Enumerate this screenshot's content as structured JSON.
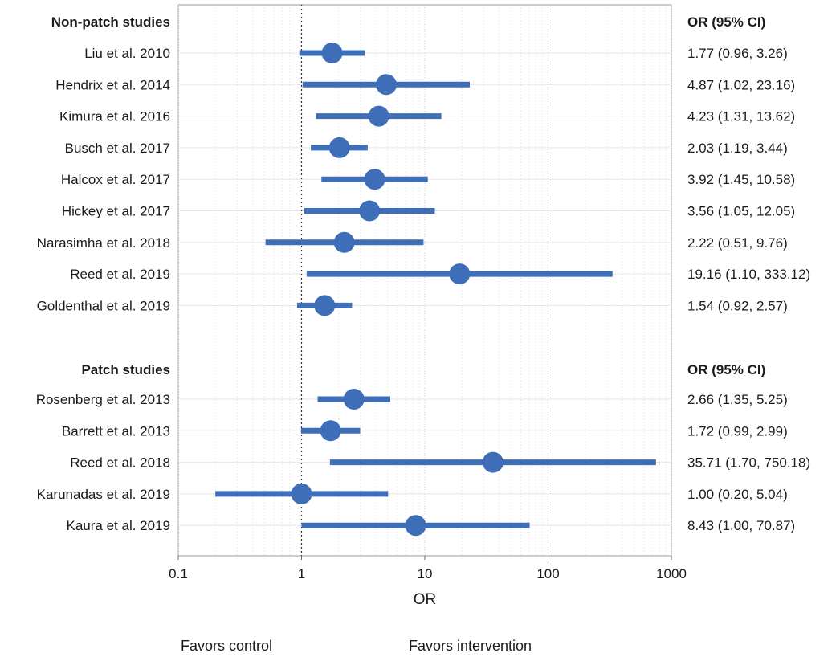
{
  "chart_data": {
    "type": "forest",
    "xlabel": "OR",
    "xscale": "log",
    "xlim": [
      0.1,
      1000
    ],
    "xticks": [
      0.1,
      1,
      10,
      100,
      1000
    ],
    "xtick_labels": [
      "0.1",
      "1",
      "10",
      "100",
      "1000"
    ],
    "reference_line": 1,
    "point_color": "#3f6eb8",
    "ci_column_header": "OR (95% CI)",
    "favors_left": "Favors control",
    "favors_right": "Favors intervention",
    "groups": [
      {
        "name": "Non-patch studies",
        "studies": [
          {
            "label": "Liu et al. 2010",
            "or": 1.77,
            "lo": 0.96,
            "hi": 3.26,
            "ci_text": "1.77 (0.96, 3.26)"
          },
          {
            "label": "Hendrix et al. 2014",
            "or": 4.87,
            "lo": 1.02,
            "hi": 23.16,
            "ci_text": "4.87 (1.02, 23.16)"
          },
          {
            "label": "Kimura et al. 2016",
            "or": 4.23,
            "lo": 1.31,
            "hi": 13.62,
            "ci_text": "4.23 (1.31, 13.62)"
          },
          {
            "label": "Busch et al. 2017",
            "or": 2.03,
            "lo": 1.19,
            "hi": 3.44,
            "ci_text": "2.03 (1.19, 3.44)"
          },
          {
            "label": "Halcox et al. 2017",
            "or": 3.92,
            "lo": 1.45,
            "hi": 10.58,
            "ci_text": "3.92 (1.45, 10.58)"
          },
          {
            "label": "Hickey et al. 2017",
            "or": 3.56,
            "lo": 1.05,
            "hi": 12.05,
            "ci_text": "3.56 (1.05, 12.05)"
          },
          {
            "label": "Narasimha et al. 2018",
            "or": 2.22,
            "lo": 0.51,
            "hi": 9.76,
            "ci_text": "2.22 (0.51, 9.76)"
          },
          {
            "label": "Reed et al. 2019",
            "or": 19.16,
            "lo": 1.1,
            "hi": 333.12,
            "ci_text": "19.16 (1.10, 333.12)"
          },
          {
            "label": "Goldenthal et al. 2019",
            "or": 1.54,
            "lo": 0.92,
            "hi": 2.57,
            "ci_text": "1.54 (0.92, 2.57)"
          }
        ]
      },
      {
        "name": "Patch studies",
        "studies": [
          {
            "label": "Rosenberg et al. 2013",
            "or": 2.66,
            "lo": 1.35,
            "hi": 5.25,
            "ci_text": "2.66 (1.35, 5.25)"
          },
          {
            "label": "Barrett et al. 2013",
            "or": 1.72,
            "lo": 0.99,
            "hi": 2.99,
            "ci_text": "1.72 (0.99, 2.99)"
          },
          {
            "label": "Reed et al. 2018",
            "or": 35.71,
            "lo": 1.7,
            "hi": 750.18,
            "ci_text": "35.71 (1.70, 750.18)"
          },
          {
            "label": "Karunadas et al. 2019",
            "or": 1.0,
            "lo": 0.2,
            "hi": 5.04,
            "ci_text": "1.00 (0.20, 5.04)"
          },
          {
            "label": "Kaura et al. 2019",
            "or": 8.43,
            "lo": 1.0,
            "hi": 70.87,
            "ci_text": "8.43 (1.00, 70.87)"
          }
        ]
      }
    ]
  }
}
